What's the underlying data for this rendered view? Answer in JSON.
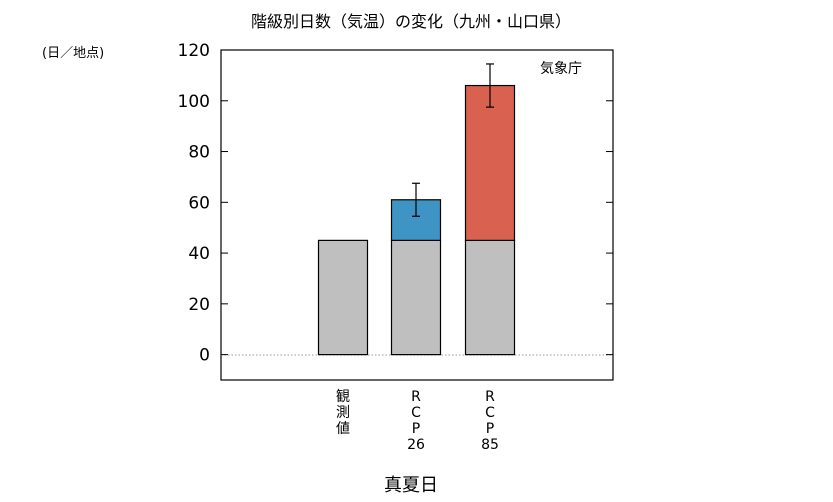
{
  "chart_data": {
    "type": "bar",
    "stacked": true,
    "title": "階級別日数（気温）の変化（九州・山口県）",
    "unit_label": "(日／地点)",
    "credit": "気象庁",
    "xlabel": "真夏日",
    "ylim": [
      -10,
      120
    ],
    "yticks": [
      0,
      20,
      40,
      60,
      80,
      100,
      120
    ],
    "grid": false,
    "zero_line": "dotted",
    "categories": [
      {
        "id": "obs",
        "lines": [
          "観",
          "測",
          "値"
        ]
      },
      {
        "id": "rcp26",
        "lines": [
          "R",
          "C",
          "P",
          "26"
        ]
      },
      {
        "id": "rcp85",
        "lines": [
          "R",
          "C",
          "P",
          "85"
        ]
      }
    ],
    "series": [
      {
        "id": "baseline",
        "color": "#bfbfbf",
        "values": [
          45,
          45,
          45
        ]
      },
      {
        "id": "increase",
        "colors": [
          "",
          "#3f94c6",
          "#d8624f"
        ],
        "values": [
          0,
          16,
          61
        ]
      }
    ],
    "error_bars": [
      null,
      {
        "center": 61,
        "low": 54.5,
        "high": 67.5
      },
      {
        "center": 106,
        "low": 97.5,
        "high": 114.5
      }
    ]
  }
}
